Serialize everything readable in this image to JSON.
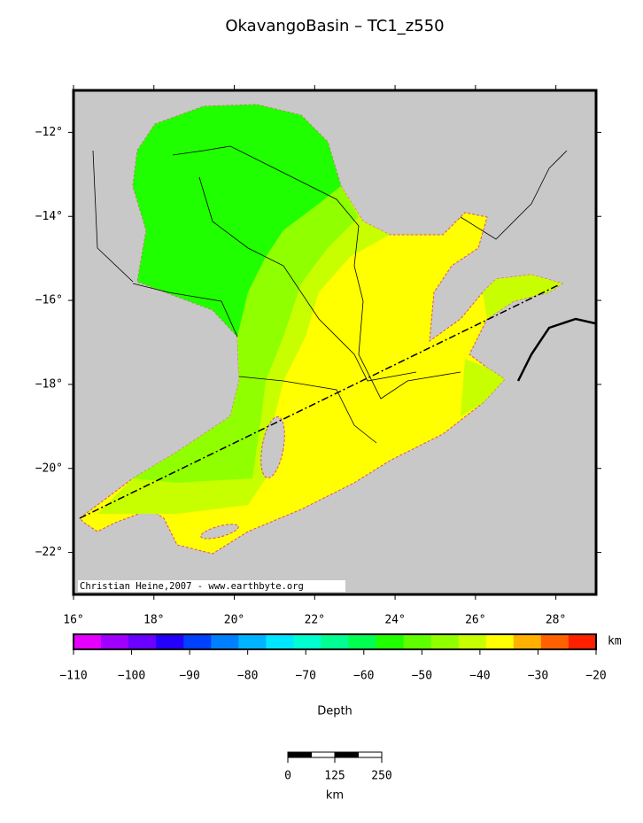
{
  "title": "OkavangoBasin – TC1_z550",
  "map": {
    "xlim": [
      16,
      29
    ],
    "ylim": [
      -23,
      -11
    ],
    "xticks": [
      {
        "value": 16,
        "label": "16°"
      },
      {
        "value": 18,
        "label": "18°"
      },
      {
        "value": 20,
        "label": "20°"
      },
      {
        "value": 22,
        "label": "22°"
      },
      {
        "value": 24,
        "label": "24°"
      },
      {
        "value": 26,
        "label": "26°"
      },
      {
        "value": 28,
        "label": "28°"
      }
    ],
    "yticks": [
      {
        "value": -12,
        "label": "−12°"
      },
      {
        "value": -14,
        "label": "−14°"
      },
      {
        "value": -16,
        "label": "−16°"
      },
      {
        "value": -18,
        "label": "−18°"
      },
      {
        "value": -20,
        "label": "−20°"
      },
      {
        "value": -22,
        "label": "−22°"
      }
    ],
    "credit": "Christian Heine,2007 - www.earthbyte.org"
  },
  "colorbar": {
    "range": [
      -110,
      -20
    ],
    "unit": "km",
    "label": "Depth",
    "ticks": [
      {
        "value": -110,
        "label": "−110"
      },
      {
        "value": -100,
        "label": "−100"
      },
      {
        "value": -90,
        "label": "−90"
      },
      {
        "value": -80,
        "label": "−80"
      },
      {
        "value": -70,
        "label": "−70"
      },
      {
        "value": -60,
        "label": "−60"
      },
      {
        "value": -50,
        "label": "−50"
      },
      {
        "value": -40,
        "label": "−40"
      },
      {
        "value": -30,
        "label": "−30"
      },
      {
        "value": -20,
        "label": "−20"
      }
    ],
    "colors": [
      "#e600ff",
      "#a000ff",
      "#6a00ff",
      "#2400ff",
      "#0040ff",
      "#0080ff",
      "#00b4ff",
      "#00e6ff",
      "#00ffd0",
      "#00ff90",
      "#00ff50",
      "#20ff00",
      "#60ff00",
      "#90ff00",
      "#c8ff00",
      "#ffff00",
      "#ffb000",
      "#ff6000",
      "#ff2000"
    ]
  },
  "scale_bar": {
    "ticks": [
      0,
      125,
      250
    ],
    "range": [
      0,
      250
    ],
    "unit": "km"
  }
}
